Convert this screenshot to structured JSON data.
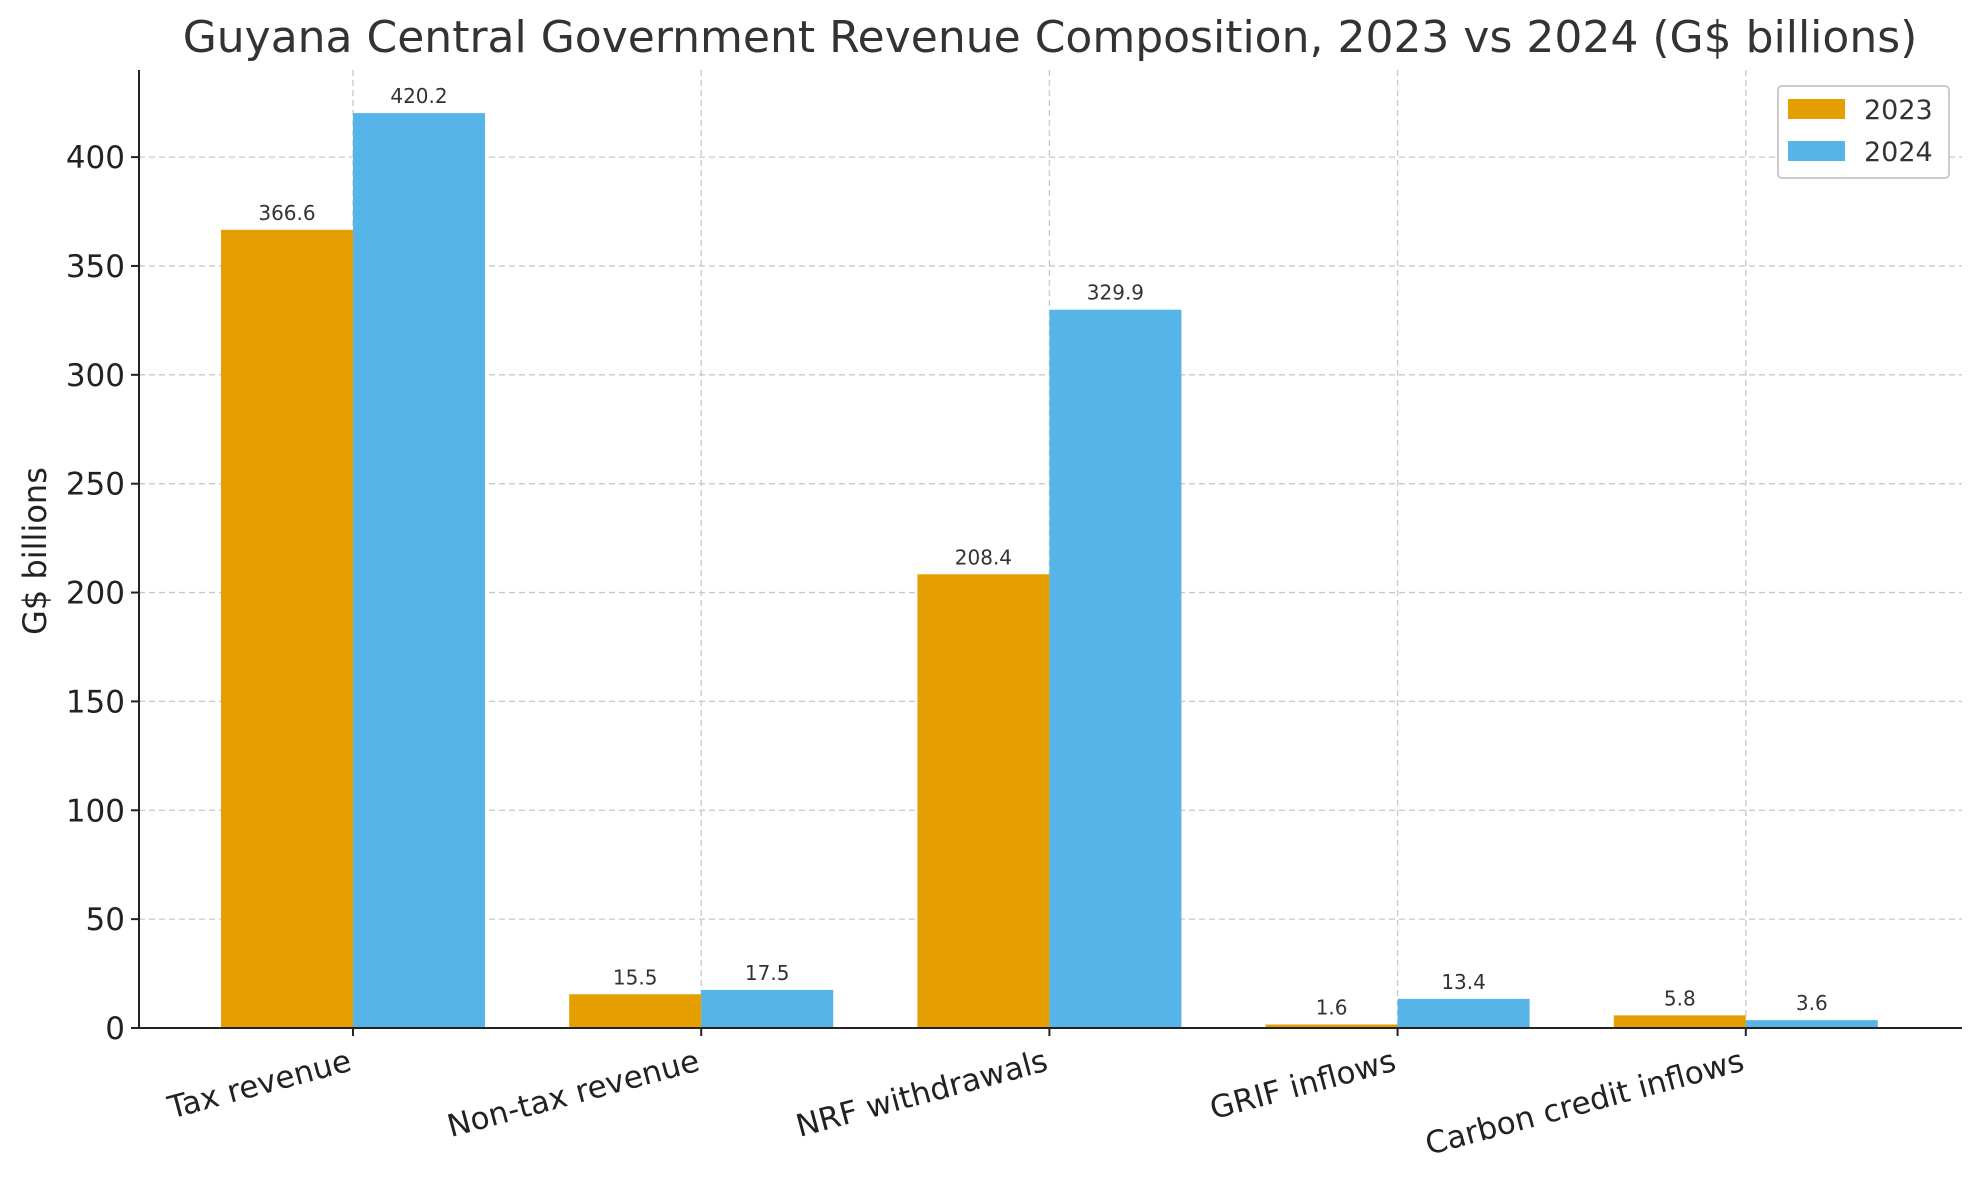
{
  "chart_data": {
    "type": "bar",
    "title": "Guyana Central Government Revenue Composition, 2023 vs 2024 (G$ billions)",
    "xlabel": "",
    "ylabel": "G$ billions",
    "categories": [
      "Tax revenue",
      "Non-tax revenue",
      "NRF withdrawals",
      "GRIF inflows",
      "Carbon credit inflows"
    ],
    "series": [
      {
        "name": "2023",
        "color": "#E69F00",
        "values": [
          366.6,
          15.5,
          208.4,
          1.6,
          5.8
        ]
      },
      {
        "name": "2024",
        "color": "#56B4E9",
        "values": [
          420.2,
          17.5,
          329.9,
          13.4,
          3.6
        ]
      }
    ],
    "ylim": [
      0,
      440
    ],
    "yticks": [
      0,
      50,
      100,
      150,
      200,
      250,
      300,
      350,
      400
    ],
    "grid": true,
    "legend_position": "top-right",
    "data_labels": true
  }
}
